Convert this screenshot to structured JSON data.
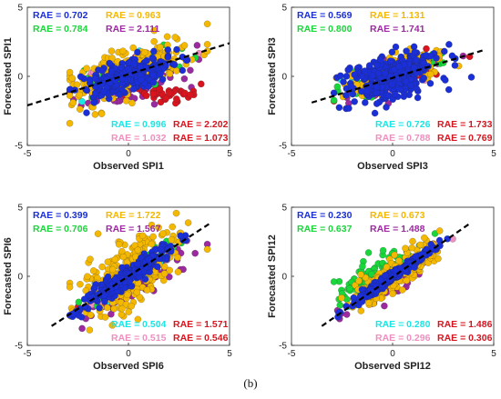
{
  "figure_caption": "(b)",
  "chart_data": [
    {
      "type": "scatter",
      "xlabel": "Observed SPI1",
      "ylabel": "Forecasted SPI1",
      "xlim": [
        -5,
        5
      ],
      "ylim": [
        -5,
        5
      ],
      "xticks": [
        -5,
        0,
        5
      ],
      "yticks": [
        -5,
        0,
        5
      ],
      "grid": false,
      "reference_line": {
        "style": "dashed",
        "color": "#000000",
        "from": [
          -5,
          -2.1
        ],
        "to": [
          5,
          2.4
        ]
      },
      "rae_labels": [
        {
          "text": "RAE = 0.702",
          "color": "#1a2fd8",
          "corner": "top-left",
          "row": 0,
          "col": 0
        },
        {
          "text": "RAE = 0.963",
          "color": "#f5b800",
          "corner": "top-left",
          "row": 0,
          "col": 1
        },
        {
          "text": "RAE = 0.784",
          "color": "#19d63a",
          "corner": "top-left",
          "row": 1,
          "col": 0
        },
        {
          "text": "RAE = 2.111",
          "color": "#9b2aa0",
          "corner": "top-left",
          "row": 1,
          "col": 1
        },
        {
          "text": "RAE = 0.996",
          "color": "#19e6e6",
          "corner": "bottom-right",
          "row": 0,
          "col": 0
        },
        {
          "text": "RAE = 2.202",
          "color": "#d8151f",
          "corner": "bottom-right",
          "row": 0,
          "col": 1
        },
        {
          "text": "RAE = 1.032",
          "color": "#f08fbf",
          "corner": "bottom-right",
          "row": 1,
          "col": 0
        },
        {
          "text": "RAE = 1.073",
          "color": "#d8151f",
          "corner": "bottom-right",
          "row": 1,
          "col": 1
        }
      ],
      "series": [
        {
          "color": "#9b2aa0",
          "cx": 0.0,
          "cy": -0.6,
          "slope": 0.4,
          "sx": 1.3,
          "sy": 0.7,
          "n": 110
        },
        {
          "color": "#d8151f",
          "cx": 2.0,
          "cy": -1.2,
          "slope": 0.1,
          "sx": 1.0,
          "sy": 0.3,
          "n": 40
        },
        {
          "color": "#f08fbf",
          "cx": 0.0,
          "cy": 0.3,
          "slope": 0.3,
          "sx": 1.5,
          "sy": 0.6,
          "n": 30
        },
        {
          "color": "#19e6e6",
          "cx": 0.0,
          "cy": 0.0,
          "slope": 0.4,
          "sx": 1.0,
          "sy": 0.6,
          "n": 30
        },
        {
          "color": "#19d63a",
          "cx": 0.0,
          "cy": 0.2,
          "slope": 0.4,
          "sx": 1.3,
          "sy": 0.6,
          "n": 70
        },
        {
          "color": "#f5b800",
          "cx": 0.0,
          "cy": 0.2,
          "slope": 0.5,
          "sx": 1.4,
          "sy": 0.9,
          "n": 230
        },
        {
          "color": "#1a2fd8",
          "cx": 0.0,
          "cy": 0.0,
          "slope": 0.4,
          "sx": 1.1,
          "sy": 0.6,
          "n": 260
        }
      ]
    },
    {
      "type": "scatter",
      "xlabel": "Observed SPI3",
      "ylabel": "Forecasted SPI3",
      "xlim": [
        -5,
        5
      ],
      "ylim": [
        -5,
        5
      ],
      "xticks": [
        -5,
        0,
        5
      ],
      "yticks": [
        -5,
        0,
        5
      ],
      "grid": false,
      "reference_line": {
        "style": "dashed",
        "color": "#000000",
        "from": [
          -4,
          -1.9
        ],
        "to": [
          4.5,
          1.9
        ]
      },
      "rae_labels": [
        {
          "text": "RAE = 0.569",
          "color": "#1a2fd8",
          "corner": "top-left",
          "row": 0,
          "col": 0
        },
        {
          "text": "RAE = 1.131",
          "color": "#f5b800",
          "corner": "top-left",
          "row": 0,
          "col": 1
        },
        {
          "text": "RAE = 0.800",
          "color": "#19d63a",
          "corner": "top-left",
          "row": 1,
          "col": 0
        },
        {
          "text": "RAE = 1.741",
          "color": "#9b2aa0",
          "corner": "top-left",
          "row": 1,
          "col": 1
        },
        {
          "text": "RAE = 0.726",
          "color": "#19e6e6",
          "corner": "bottom-right",
          "row": 0,
          "col": 0
        },
        {
          "text": "RAE = 1.733",
          "color": "#d8151f",
          "corner": "bottom-right",
          "row": 0,
          "col": 1
        },
        {
          "text": "RAE = 0.788",
          "color": "#f08fbf",
          "corner": "bottom-right",
          "row": 1,
          "col": 0
        },
        {
          "text": "RAE = 0.769",
          "color": "#d8151f",
          "corner": "bottom-right",
          "row": 1,
          "col": 1
        }
      ],
      "series": [
        {
          "color": "#9b2aa0",
          "cx": 0.0,
          "cy": -0.1,
          "slope": 0.4,
          "sx": 1.2,
          "sy": 0.6,
          "n": 70
        },
        {
          "color": "#d8151f",
          "cx": 0.0,
          "cy": 0.0,
          "slope": 0.4,
          "sx": 1.1,
          "sy": 0.5,
          "n": 40
        },
        {
          "color": "#f08fbf",
          "cx": 0.0,
          "cy": 0.0,
          "slope": 0.4,
          "sx": 1.1,
          "sy": 0.5,
          "n": 30
        },
        {
          "color": "#19e6e6",
          "cx": -0.5,
          "cy": -0.2,
          "slope": 0.4,
          "sx": 1.0,
          "sy": 0.5,
          "n": 30
        },
        {
          "color": "#19d63a",
          "cx": 0.0,
          "cy": 0.1,
          "slope": 0.4,
          "sx": 1.1,
          "sy": 0.5,
          "n": 60
        },
        {
          "color": "#f5b800",
          "cx": 0.0,
          "cy": 0.2,
          "slope": 0.4,
          "sx": 1.2,
          "sy": 0.6,
          "n": 180
        },
        {
          "color": "#1a2fd8",
          "cx": 0.0,
          "cy": -0.1,
          "slope": 0.35,
          "sx": 1.1,
          "sy": 0.8,
          "n": 320
        }
      ]
    },
    {
      "type": "scatter",
      "xlabel": "Observed SPI6",
      "ylabel": "Forecasted SPI6",
      "xlim": [
        -5,
        5
      ],
      "ylim": [
        -5,
        5
      ],
      "xticks": [
        -5,
        0,
        5
      ],
      "yticks": [
        -5,
        0,
        5
      ],
      "grid": false,
      "reference_line": {
        "style": "dashed",
        "color": "#000000",
        "from": [
          -3.8,
          -3.6
        ],
        "to": [
          4,
          3.8
        ]
      },
      "rae_labels": [
        {
          "text": "RAE = 0.399",
          "color": "#1a2fd8",
          "corner": "top-left",
          "row": 0,
          "col": 0
        },
        {
          "text": "RAE = 1.722",
          "color": "#f5b800",
          "corner": "top-left",
          "row": 0,
          "col": 1
        },
        {
          "text": "RAE = 0.706",
          "color": "#19d63a",
          "corner": "top-left",
          "row": 1,
          "col": 0
        },
        {
          "text": "RAE = 1.567",
          "color": "#9b2aa0",
          "corner": "top-left",
          "row": 1,
          "col": 1
        },
        {
          "text": "RAE = 0.504",
          "color": "#19e6e6",
          "corner": "bottom-right",
          "row": 0,
          "col": 0
        },
        {
          "text": "RAE = 1.571",
          "color": "#d8151f",
          "corner": "bottom-right",
          "row": 0,
          "col": 1
        },
        {
          "text": "RAE = 0.515",
          "color": "#f08fbf",
          "corner": "bottom-right",
          "row": 1,
          "col": 0
        },
        {
          "text": "RAE = 0.546",
          "color": "#d8151f",
          "corner": "bottom-right",
          "row": 1,
          "col": 1
        }
      ],
      "series": [
        {
          "color": "#9b2aa0",
          "cx": 0.3,
          "cy": -0.6,
          "slope": 0.8,
          "sx": 1.3,
          "sy": 0.6,
          "n": 90
        },
        {
          "color": "#d8151f",
          "cx": 0.0,
          "cy": 0.0,
          "slope": 0.9,
          "sx": 1.0,
          "sy": 0.4,
          "n": 30
        },
        {
          "color": "#f08fbf",
          "cx": 0.0,
          "cy": 0.0,
          "slope": 0.9,
          "sx": 1.0,
          "sy": 0.4,
          "n": 30
        },
        {
          "color": "#19e6e6",
          "cx": 0.0,
          "cy": 0.0,
          "slope": 0.9,
          "sx": 1.0,
          "sy": 0.4,
          "n": 30
        },
        {
          "color": "#19d63a",
          "cx": 0.0,
          "cy": 0.0,
          "slope": 0.9,
          "sx": 1.2,
          "sy": 0.5,
          "n": 60
        },
        {
          "color": "#f5b800",
          "cx": 0.0,
          "cy": 0.2,
          "slope": 0.8,
          "sx": 1.3,
          "sy": 1.2,
          "n": 260
        },
        {
          "color": "#1a2fd8",
          "cx": 0.0,
          "cy": 0.0,
          "slope": 0.95,
          "sx": 1.1,
          "sy": 0.35,
          "n": 300
        }
      ]
    },
    {
      "type": "scatter",
      "xlabel": "Observed SPI12",
      "ylabel": "Forecasted SPI12",
      "xlim": [
        -5,
        5
      ],
      "ylim": [
        -5,
        5
      ],
      "xticks": [
        -5,
        0,
        5
      ],
      "yticks": [
        -5,
        0,
        5
      ],
      "grid": false,
      "reference_line": {
        "style": "dashed",
        "color": "#000000",
        "from": [
          -3.5,
          -3.6
        ],
        "to": [
          3.8,
          3.8
        ]
      },
      "rae_labels": [
        {
          "text": "RAE = 0.230",
          "color": "#1a2fd8",
          "corner": "top-left",
          "row": 0,
          "col": 0
        },
        {
          "text": "RAE = 0.673",
          "color": "#f5b800",
          "corner": "top-left",
          "row": 0,
          "col": 1
        },
        {
          "text": "RAE = 0.637",
          "color": "#19d63a",
          "corner": "top-left",
          "row": 1,
          "col": 0
        },
        {
          "text": "RAE = 1.488",
          "color": "#9b2aa0",
          "corner": "top-left",
          "row": 1,
          "col": 1
        },
        {
          "text": "RAE = 0.280",
          "color": "#19e6e6",
          "corner": "bottom-right",
          "row": 0,
          "col": 0
        },
        {
          "text": "RAE = 1.486",
          "color": "#d8151f",
          "corner": "bottom-right",
          "row": 0,
          "col": 1
        },
        {
          "text": "RAE = 0.296",
          "color": "#f08fbf",
          "corner": "bottom-right",
          "row": 1,
          "col": 0
        },
        {
          "text": "RAE = 0.306",
          "color": "#d8151f",
          "corner": "bottom-right",
          "row": 1,
          "col": 1
        }
      ],
      "series": [
        {
          "color": "#9b2aa0",
          "cx": 0.0,
          "cy": -0.3,
          "slope": 0.9,
          "sx": 1.0,
          "sy": 0.5,
          "n": 70
        },
        {
          "color": "#d8151f",
          "cx": 0.0,
          "cy": 0.0,
          "slope": 1.0,
          "sx": 0.9,
          "sy": 0.25,
          "n": 30
        },
        {
          "color": "#f08fbf",
          "cx": 0.0,
          "cy": 0.0,
          "slope": 1.0,
          "sx": 0.9,
          "sy": 0.25,
          "n": 30
        },
        {
          "color": "#19e6e6",
          "cx": 0.0,
          "cy": 0.0,
          "slope": 1.0,
          "sx": 0.9,
          "sy": 0.25,
          "n": 30
        },
        {
          "color": "#19d63a",
          "cx": -0.8,
          "cy": 0.1,
          "slope": 0.8,
          "sx": 1.0,
          "sy": 0.7,
          "n": 100
        },
        {
          "color": "#f5b800",
          "cx": 0.0,
          "cy": 0.0,
          "slope": 0.9,
          "sx": 1.1,
          "sy": 0.6,
          "n": 200
        },
        {
          "color": "#1a2fd8",
          "cx": 0.0,
          "cy": 0.0,
          "slope": 1.0,
          "sx": 1.0,
          "sy": 0.2,
          "n": 280
        }
      ]
    }
  ]
}
